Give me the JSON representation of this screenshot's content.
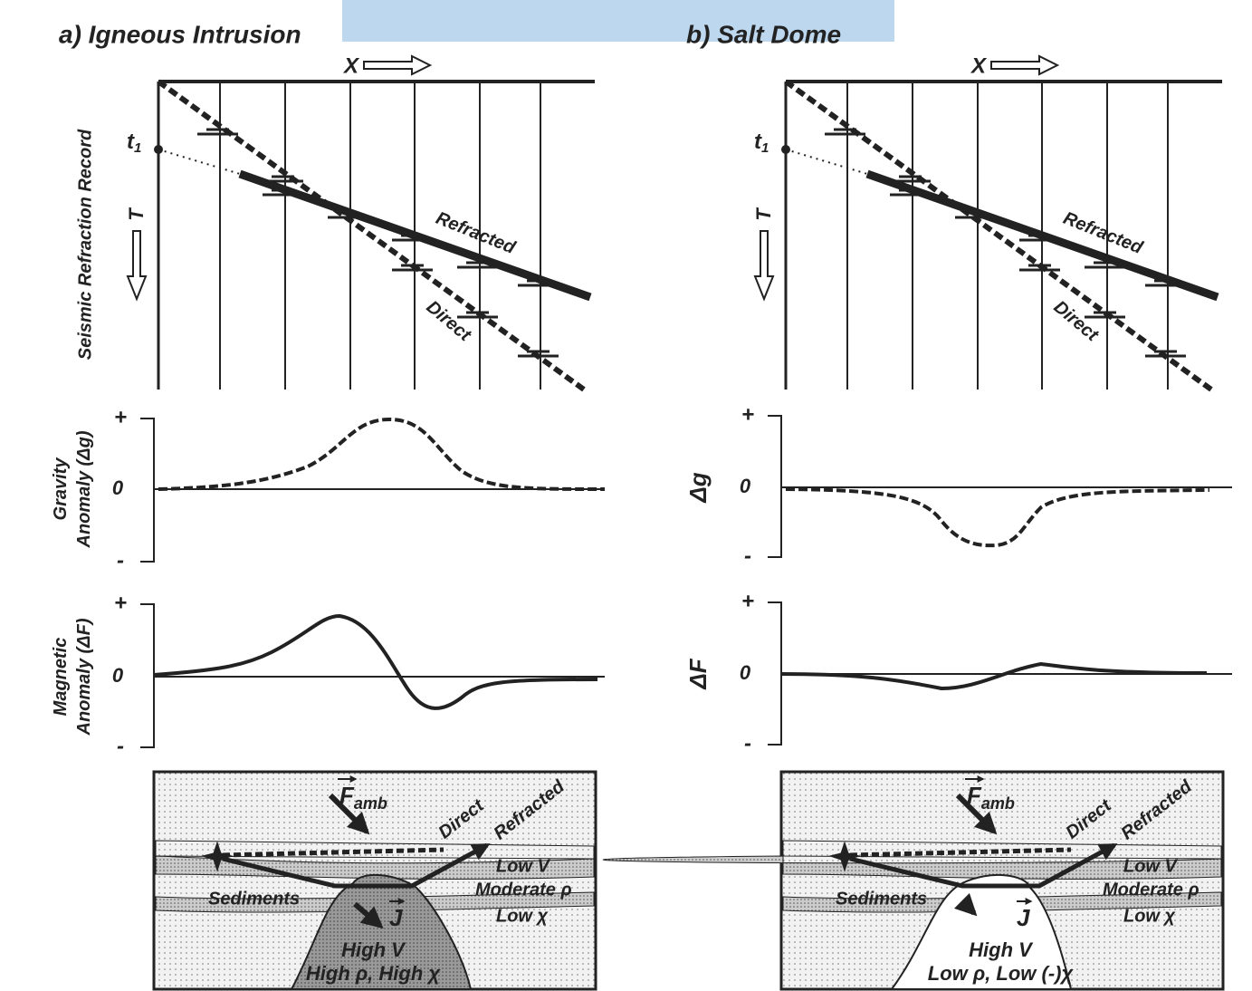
{
  "panels": [
    {
      "title": "a) Igneous Intrusion",
      "x_label": "X",
      "t_label": "T",
      "t1_label": "t",
      "t1_sub": "1",
      "record_label": "Seismic Refraction Record",
      "refracted": "Refracted",
      "direct": "Direct",
      "gravity": {
        "label_lines": [
          "Gravity",
          "Anomaly (Δg)"
        ],
        "plus": "+",
        "zero": "0",
        "minus": "-"
      },
      "magnetic": {
        "label_lines": [
          "Magnetic",
          "Anomaly (ΔF)"
        ],
        "plus": "+",
        "zero": "0",
        "minus": "-"
      },
      "model": {
        "f_amb": "F",
        "f_amb_sub": "amb",
        "direct": "Direct",
        "refracted": "Refracted",
        "low_v": "Low V",
        "moderate_rho": "Moderate ρ",
        "low_chi": "Low χ",
        "sediments": "Sediments",
        "j": "J",
        "high_v": "High V",
        "properties": "High ρ, High χ"
      }
    },
    {
      "title": "b) Salt Dome",
      "x_label": "X",
      "t_label": "T",
      "t1_label": "t",
      "t1_sub": "1",
      "record_label": "",
      "refracted": "Refracted",
      "direct": "Direct",
      "gravity": {
        "label_lines": [
          "Δg"
        ],
        "plus": "+",
        "zero": "0",
        "minus": "-"
      },
      "magnetic": {
        "label_lines": [
          "ΔF"
        ],
        "plus": "+",
        "zero": "0",
        "minus": "-"
      },
      "model": {
        "f_amb": "F",
        "f_amb_sub": "amb",
        "direct": "Direct",
        "refracted": "Refracted",
        "low_v": "Low V",
        "moderate_rho": "Moderate ρ",
        "low_chi": "Low χ",
        "sediments": "Sediments",
        "j": "J",
        "high_v": "High V",
        "properties": "Low ρ, Low (-)χ"
      }
    }
  ]
}
